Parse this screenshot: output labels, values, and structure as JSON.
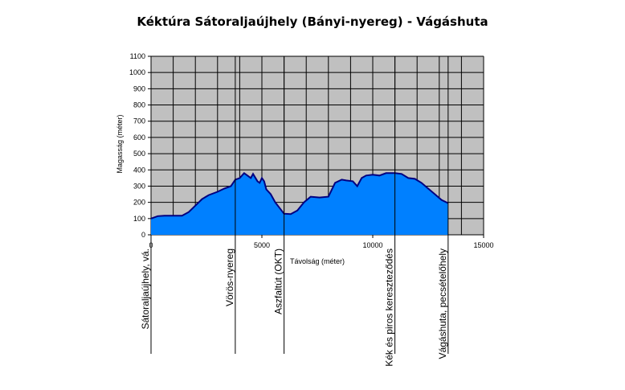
{
  "chart_data": {
    "type": "area",
    "title": "Kéktúra Sátoraljaújhely (Bányi-nyereg) - Vágáshuta",
    "xlabel": "Távolság (méter)",
    "ylabel": "Magasság (méter)",
    "xlim": [
      0,
      15000
    ],
    "ylim": [
      0,
      1100
    ],
    "xticks": [
      0,
      5000,
      10000,
      15000
    ],
    "yticks": [
      0,
      100,
      200,
      300,
      400,
      500,
      600,
      700,
      800,
      900,
      1000,
      1100
    ],
    "grid": true,
    "colors": {
      "fill": "#0080ff",
      "stroke": "#000080",
      "plot_bg": "#c0c0c0",
      "grid": "#000000"
    },
    "series": [
      {
        "x": [
          0,
          300,
          600,
          1000,
          1400,
          1700,
          2000,
          2300,
          2600,
          3000,
          3300,
          3600,
          3800,
          4000,
          4200,
          4400,
          4500,
          4600,
          4800,
          4900,
          5000,
          5100,
          5200,
          5400,
          5600,
          5800,
          6000,
          6300,
          6600,
          6900,
          7200,
          7600,
          8000,
          8300,
          8600,
          8800,
          9100,
          9300,
          9500,
          9700,
          10000,
          10300,
          10600,
          11000,
          11300,
          11600,
          11900,
          12200,
          12500,
          12800,
          13100,
          13400
        ],
        "values": [
          100,
          115,
          118,
          118,
          118,
          140,
          180,
          220,
          245,
          265,
          285,
          300,
          340,
          350,
          380,
          360,
          350,
          375,
          330,
          320,
          350,
          330,
          280,
          250,
          200,
          165,
          130,
          128,
          150,
          200,
          235,
          230,
          235,
          320,
          340,
          335,
          330,
          300,
          350,
          365,
          370,
          365,
          380,
          380,
          375,
          350,
          345,
          320,
          285,
          250,
          215,
          195
        ]
      }
    ],
    "waypoints": [
      {
        "label": "Sátoraljaújhely, vá.",
        "x": 0
      },
      {
        "label": "Vörös-nyereg",
        "x": 3800
      },
      {
        "label": "Aszfaltút (OKT)",
        "x": 6000
      },
      {
        "label": "Kék és piros kereszteződés",
        "x": 11000
      },
      {
        "label": "Vágáshuta, pecsételőhely",
        "x": 13400
      }
    ]
  }
}
